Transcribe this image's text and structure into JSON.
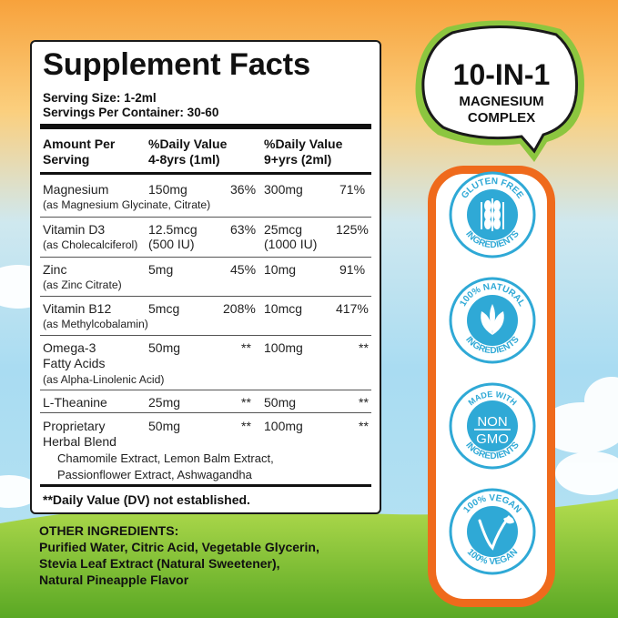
{
  "supplement_facts": {
    "title": "Supplement Facts",
    "serving_size": "Serving Size: 1-2ml",
    "servings_per_container": "Servings Per Container: 30-60",
    "headers": {
      "amount_line1": "Amount Per",
      "amount_line2": "Serving",
      "col1_line1": "%Daily Value",
      "col1_line2": "4-8yrs (1ml)",
      "col2_line1": "%Daily Value",
      "col2_line2": "9+yrs (2ml)"
    },
    "rows": [
      {
        "name": "Magnesium",
        "source": "(as Magnesium Glycinate, Citrate)",
        "amt1": "150mg",
        "dv1": "36%",
        "amt2": "300mg",
        "dv2": "71%"
      },
      {
        "name": "Vitamin D3",
        "source": "(as Cholecalciferol)",
        "amt1": "12.5mcg",
        "amt1_iu": "(500 IU)",
        "dv1": "63%",
        "amt2": "25mcg",
        "amt2_iu": "(1000 IU)",
        "dv2": "125%"
      },
      {
        "name": "Zinc",
        "source": "(as Zinc Citrate)",
        "amt1": "5mg",
        "dv1": "45%",
        "amt2": "10mg",
        "dv2": "91%"
      },
      {
        "name": "Vitamin B12",
        "source": "(as Methylcobalamin)",
        "amt1": "5mcg",
        "dv1": "208%",
        "amt2": "10mcg",
        "dv2": "417%"
      },
      {
        "name_line1": "Omega-3",
        "name_line2": "Fatty Acids",
        "source": "(as Alpha-Linolenic Acid)",
        "amt1": "50mg",
        "dv1": "**",
        "amt2": "100mg",
        "dv2": "**"
      },
      {
        "name": "L-Theanine",
        "amt1": "25mg",
        "dv1": "**",
        "amt2": "50mg",
        "dv2": "**"
      },
      {
        "name_line1": "Proprietary",
        "name_line2": "Herbal Blend",
        "amt1": "50mg",
        "dv1": "**",
        "amt2": "100mg",
        "dv2": "**",
        "blend_line1": "Chamomile Extract, Lemon Balm Extract,",
        "blend_line2": "Passionflower Extract, Ashwagandha"
      }
    ],
    "footnote": "**Daily Value (DV) not established."
  },
  "other_ingredients": {
    "title": "OTHER INGREDIENTS:",
    "line1": "Purified Water, Citric Acid, Vegetable Glycerin,",
    "line2": "Stevia Leaf Extract (Natural Sweetener),",
    "line3": "Natural Pineapple Flavor"
  },
  "bubble": {
    "line1": "10-IN-1",
    "line2": "MAGNESIUM",
    "line3": "COMPLEX"
  },
  "badges": [
    {
      "top": "GLUTEN FREE",
      "bottom": "INGREDIENTS",
      "icon": "wheat-icon"
    },
    {
      "top": "100% NATURAL",
      "bottom": "INGREDIENTS",
      "icon": "leaf-icon"
    },
    {
      "top": "MADE WITH",
      "mid1": "NON",
      "mid2": "GMO",
      "bottom": "INGREDIENTS",
      "icon": "non-gmo-icon"
    },
    {
      "top": "100% VEGAN",
      "bottom": "100% VEGAN",
      "icon": "v-leaf-icon"
    }
  ],
  "colors": {
    "accent_orange": "#ef6a1c",
    "badge_teal": "#2fa9d6",
    "bubble_green": "#8cc63f"
  }
}
